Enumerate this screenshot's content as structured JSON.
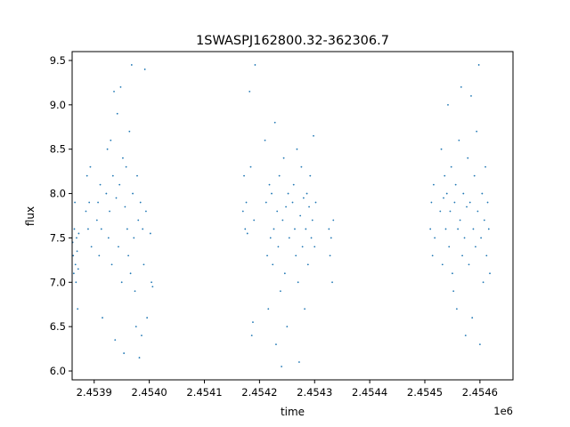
{
  "chart_data": {
    "type": "scatter",
    "title": "1SWASPJ162800.32-362306.7",
    "xlabel": "time",
    "ylabel": "flux",
    "x_offset_label": "1e6",
    "xlim": [
      2.45386,
      2.45466
    ],
    "ylim": [
      5.9,
      9.6
    ],
    "x_ticks": [
      2.4539,
      2.454,
      2.4541,
      2.4542,
      2.4543,
      2.4544,
      2.4545,
      2.4546
    ],
    "x_tick_labels": [
      "2.4539",
      "2.4540",
      "2.4541",
      "2.4542",
      "2.4543",
      "2.4544",
      "2.4545",
      "2.4546"
    ],
    "y_ticks": [
      6.0,
      6.5,
      7.0,
      7.5,
      8.0,
      8.5,
      9.0,
      9.5
    ],
    "y_tick_labels": [
      "6.0",
      "6.5",
      "7.0",
      "7.5",
      "8.0",
      "8.5",
      "9.0",
      "9.5"
    ],
    "grid": false,
    "marker_color": "#1f77b4",
    "series": [
      {
        "points": [
          [
            2.453861,
            7.45
          ],
          [
            2.453862,
            7.3
          ],
          [
            2.453863,
            7.1
          ],
          [
            2.453864,
            7.6
          ],
          [
            2.453865,
            7.9
          ],
          [
            2.453866,
            7.2
          ],
          [
            2.453867,
            7.0
          ],
          [
            2.453868,
            7.5
          ],
          [
            2.453869,
            7.35
          ],
          [
            2.45387,
            6.7
          ],
          [
            2.453871,
            7.15
          ],
          [
            2.453872,
            7.55
          ],
          [
            2.453885,
            7.8
          ],
          [
            2.453887,
            8.2
          ],
          [
            2.453889,
            7.6
          ],
          [
            2.453891,
            7.9
          ],
          [
            2.453893,
            8.3
          ],
          [
            2.453895,
            7.4
          ],
          [
            2.453905,
            7.7
          ],
          [
            2.453907,
            7.9
          ],
          [
            2.453909,
            7.3
          ],
          [
            2.453911,
            8.1
          ],
          [
            2.453913,
            7.6
          ],
          [
            2.453915,
            6.6
          ],
          [
            2.453922,
            8.0
          ],
          [
            2.453924,
            8.5
          ],
          [
            2.453926,
            7.5
          ],
          [
            2.453928,
            7.8
          ],
          [
            2.45393,
            8.6
          ],
          [
            2.453932,
            7.2
          ],
          [
            2.453934,
            8.2
          ],
          [
            2.453936,
            9.15
          ],
          [
            2.453938,
            6.35
          ],
          [
            2.45394,
            7.95
          ],
          [
            2.453942,
            8.9
          ],
          [
            2.453944,
            7.4
          ],
          [
            2.453946,
            8.1
          ],
          [
            2.453948,
            9.2
          ],
          [
            2.45395,
            7.0
          ],
          [
            2.453952,
            8.4
          ],
          [
            2.453954,
            6.2
          ],
          [
            2.453956,
            7.85
          ],
          [
            2.453958,
            8.3
          ],
          [
            2.45396,
            7.6
          ],
          [
            2.453962,
            7.3
          ],
          [
            2.453964,
            8.7
          ],
          [
            2.453966,
            7.1
          ],
          [
            2.453968,
            9.45
          ],
          [
            2.45397,
            8.0
          ],
          [
            2.453972,
            7.5
          ],
          [
            2.453974,
            6.9
          ],
          [
            2.453976,
            6.5
          ],
          [
            2.453978,
            8.2
          ],
          [
            2.45398,
            7.7
          ],
          [
            2.453982,
            6.15
          ],
          [
            2.453984,
            7.9
          ],
          [
            2.453986,
            6.4
          ],
          [
            2.453988,
            7.6
          ],
          [
            2.45399,
            7.2
          ],
          [
            2.453992,
            9.4
          ],
          [
            2.453994,
            7.8
          ],
          [
            2.453996,
            6.6
          ],
          [
            2.454002,
            7.55
          ],
          [
            2.454004,
            7.0
          ],
          [
            2.454006,
            6.95
          ],
          [
            2.45417,
            7.8
          ],
          [
            2.454172,
            8.2
          ],
          [
            2.454174,
            7.6
          ],
          [
            2.454176,
            7.9
          ],
          [
            2.454178,
            7.55
          ],
          [
            2.454182,
            9.15
          ],
          [
            2.454184,
            8.3
          ],
          [
            2.454186,
            6.4
          ],
          [
            2.454188,
            6.55
          ],
          [
            2.45419,
            7.7
          ],
          [
            2.454192,
            9.45
          ],
          [
            2.45421,
            8.6
          ],
          [
            2.454212,
            7.9
          ],
          [
            2.454214,
            7.3
          ],
          [
            2.454216,
            6.7
          ],
          [
            2.454218,
            8.1
          ],
          [
            2.45422,
            7.5
          ],
          [
            2.454222,
            8.0
          ],
          [
            2.454224,
            7.2
          ],
          [
            2.454226,
            7.6
          ],
          [
            2.454228,
            8.8
          ],
          [
            2.45423,
            6.3
          ],
          [
            2.454232,
            7.8
          ],
          [
            2.454234,
            7.4
          ],
          [
            2.454236,
            8.2
          ],
          [
            2.454238,
            6.9
          ],
          [
            2.45424,
            6.05
          ],
          [
            2.454242,
            7.7
          ],
          [
            2.454244,
            8.4
          ],
          [
            2.454246,
            7.1
          ],
          [
            2.454248,
            7.85
          ],
          [
            2.45425,
            6.5
          ],
          [
            2.454252,
            8.0
          ],
          [
            2.454254,
            7.5
          ],
          [
            2.45426,
            7.9
          ],
          [
            2.454262,
            8.1
          ],
          [
            2.454264,
            7.6
          ],
          [
            2.454266,
            7.3
          ],
          [
            2.454268,
            8.5
          ],
          [
            2.45427,
            7.0
          ],
          [
            2.454272,
            6.1
          ],
          [
            2.454274,
            7.75
          ],
          [
            2.454276,
            8.3
          ],
          [
            2.454278,
            7.4
          ],
          [
            2.45428,
            7.95
          ],
          [
            2.454282,
            6.7
          ],
          [
            2.454284,
            7.6
          ],
          [
            2.454286,
            8.0
          ],
          [
            2.454288,
            7.2
          ],
          [
            2.45429,
            7.85
          ],
          [
            2.454292,
            8.2
          ],
          [
            2.454294,
            7.5
          ],
          [
            2.454296,
            7.7
          ],
          [
            2.454298,
            8.65
          ],
          [
            2.4543,
            7.4
          ],
          [
            2.454302,
            7.9
          ],
          [
            2.454326,
            7.6
          ],
          [
            2.454328,
            7.3
          ],
          [
            2.45433,
            7.5
          ],
          [
            2.454332,
            7.0
          ],
          [
            2.454334,
            7.7
          ],
          [
            2.45451,
            7.6
          ],
          [
            2.454512,
            7.9
          ],
          [
            2.454514,
            7.3
          ],
          [
            2.454516,
            8.1
          ],
          [
            2.454518,
            7.5
          ],
          [
            2.454528,
            7.8
          ],
          [
            2.45453,
            8.5
          ],
          [
            2.454532,
            7.2
          ],
          [
            2.454534,
            7.95
          ],
          [
            2.454536,
            8.2
          ],
          [
            2.454538,
            7.6
          ],
          [
            2.45454,
            8.0
          ],
          [
            2.454542,
            9.0
          ],
          [
            2.454544,
            7.4
          ],
          [
            2.454546,
            7.8
          ],
          [
            2.454548,
            8.3
          ],
          [
            2.45455,
            7.1
          ],
          [
            2.454552,
            6.9
          ],
          [
            2.454554,
            7.9
          ],
          [
            2.454556,
            8.1
          ],
          [
            2.454558,
            6.7
          ],
          [
            2.45456,
            7.6
          ],
          [
            2.454562,
            8.6
          ],
          [
            2.454564,
            7.7
          ],
          [
            2.454566,
            9.2
          ],
          [
            2.454568,
            7.3
          ],
          [
            2.45457,
            8.0
          ],
          [
            2.454572,
            7.5
          ],
          [
            2.454574,
            6.4
          ],
          [
            2.454576,
            7.85
          ],
          [
            2.454578,
            8.4
          ],
          [
            2.45458,
            7.2
          ],
          [
            2.454582,
            7.9
          ],
          [
            2.454584,
            9.1
          ],
          [
            2.454586,
            6.6
          ],
          [
            2.454588,
            7.6
          ],
          [
            2.45459,
            8.2
          ],
          [
            2.454592,
            7.4
          ],
          [
            2.454594,
            8.7
          ],
          [
            2.454596,
            7.8
          ],
          [
            2.454598,
            9.45
          ],
          [
            2.4546,
            6.3
          ],
          [
            2.454602,
            7.5
          ],
          [
            2.454604,
            8.0
          ],
          [
            2.454606,
            7.0
          ],
          [
            2.454608,
            7.7
          ],
          [
            2.45461,
            8.3
          ],
          [
            2.454612,
            7.3
          ],
          [
            2.454614,
            7.9
          ],
          [
            2.454616,
            7.6
          ],
          [
            2.454618,
            7.1
          ]
        ]
      }
    ]
  }
}
